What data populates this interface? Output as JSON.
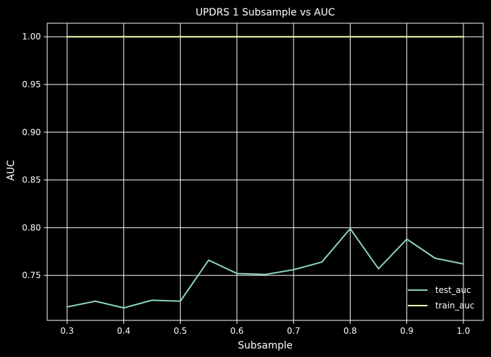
{
  "chart_data": {
    "type": "line",
    "title": "UPDRS 1 Subsample vs AUC",
    "xlabel": "Subsample",
    "ylabel": "AUC",
    "xlim": [
      0.265,
      1.035
    ],
    "ylim": [
      0.7029,
      1.0142
    ],
    "x_ticks": [
      0.3,
      0.4,
      0.5,
      0.6,
      0.7,
      0.8,
      0.9,
      1.0
    ],
    "x_tick_labels": [
      "0.3",
      "0.4",
      "0.5",
      "0.6",
      "0.7",
      "0.8",
      "0.9",
      "1.0"
    ],
    "y_ticks": [
      0.75,
      0.8,
      0.85,
      0.9,
      0.95,
      1.0
    ],
    "y_tick_labels": [
      "0.75",
      "0.80",
      "0.85",
      "0.90",
      "0.95",
      "1.00"
    ],
    "grid": true,
    "legend": "lower-right",
    "background": "#000000",
    "grid_color": "#ffffff",
    "x": [
      0.3,
      0.35,
      0.4,
      0.45,
      0.5,
      0.55,
      0.6,
      0.65,
      0.7,
      0.75,
      0.8,
      0.85,
      0.9,
      0.95,
      1.0
    ],
    "series": [
      {
        "name": "test_auc",
        "color": "#8dd3c7",
        "values": [
          0.717,
          0.723,
          0.716,
          0.724,
          0.723,
          0.766,
          0.752,
          0.751,
          0.756,
          0.764,
          0.799,
          0.757,
          0.788,
          0.768,
          0.762
        ]
      },
      {
        "name": "train_auc",
        "color": "#feffb3",
        "values": [
          1.0,
          1.0,
          1.0,
          1.0,
          1.0,
          1.0,
          1.0,
          1.0,
          1.0,
          1.0,
          1.0,
          1.0,
          1.0,
          1.0,
          1.0
        ]
      }
    ]
  }
}
